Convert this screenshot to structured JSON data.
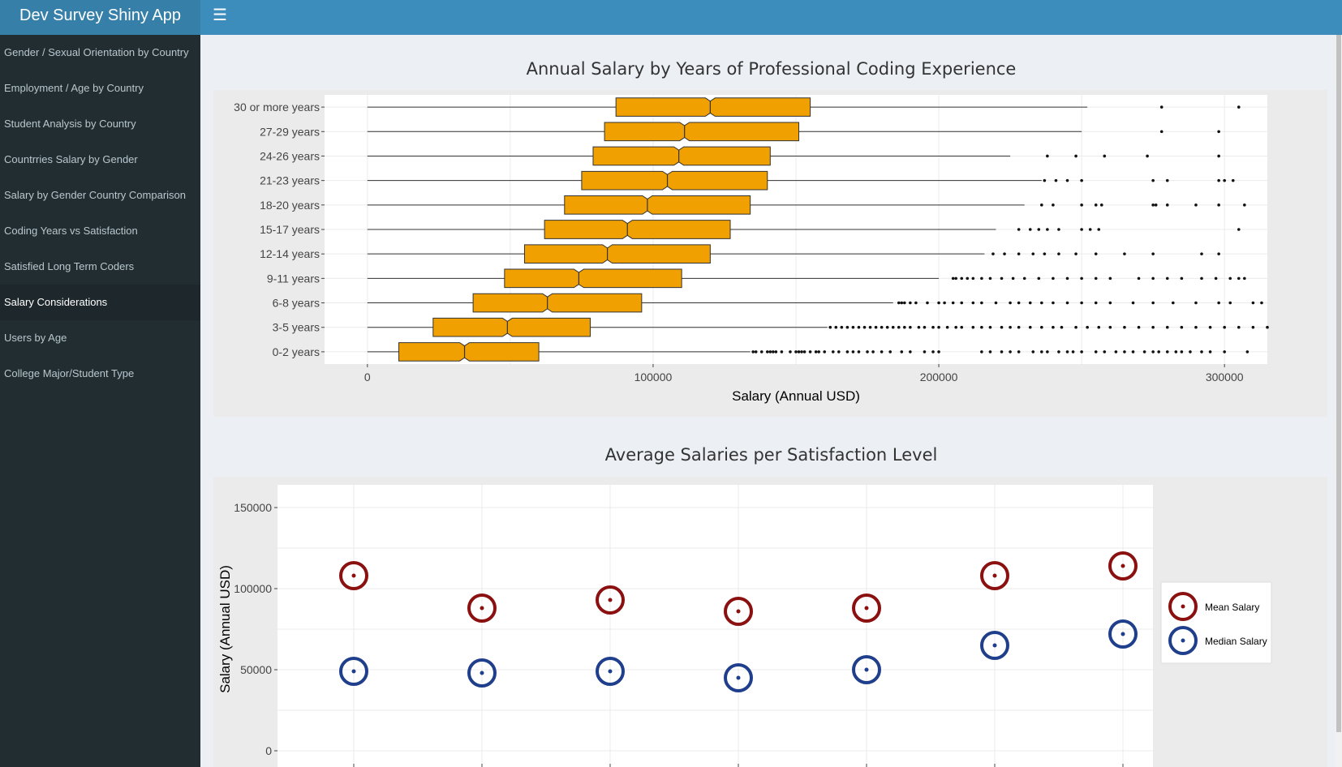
{
  "app": {
    "title": "Dev Survey Shiny App"
  },
  "sidebar": {
    "items": [
      {
        "label": "Gender / Sexual Orientation by Country",
        "active": false
      },
      {
        "label": "Employment / Age by Country",
        "active": false
      },
      {
        "label": "Student Analysis by Country",
        "active": false
      },
      {
        "label": "Countrries Salary by Gender",
        "active": false
      },
      {
        "label": "Salary by Gender Country Comparison",
        "active": false
      },
      {
        "label": "Coding Years vs Satisfaction",
        "active": false
      },
      {
        "label": "Satisfied Long Term Coders",
        "active": false
      },
      {
        "label": "Salary Considerations",
        "active": true
      },
      {
        "label": "Users by Age",
        "active": false
      },
      {
        "label": "College Major/Student Type",
        "active": false
      }
    ]
  },
  "colors": {
    "header": "#3c8dbc",
    "sidebar": "#222d32",
    "box_fill": "#f0a000",
    "mean": "#8b1010",
    "median": "#1f3f8c"
  },
  "chart_data": [
    {
      "type": "boxplot",
      "orientation": "horizontal",
      "title": "Annual Salary by Years of Professional Coding Experience",
      "xlabel": "Salary (Annual USD)",
      "ylabel": "",
      "xlim": [
        -15000,
        315000
      ],
      "xticks": [
        0,
        100000,
        200000,
        300000
      ],
      "categories": [
        "0-2 years",
        "3-5 years",
        "6-8 years",
        "9-11 years",
        "12-14 years",
        "15-17 years",
        "18-20 years",
        "21-23 years",
        "24-26 years",
        "27-29 years",
        "30 or more years"
      ],
      "boxes": [
        {
          "min": 0,
          "q1": 11000,
          "median": 34000,
          "q3": 60000,
          "max": 134000
        },
        {
          "min": 0,
          "q1": 23000,
          "median": 49000,
          "q3": 78000,
          "max": 161000
        },
        {
          "min": 0,
          "q1": 37000,
          "median": 63000,
          "q3": 96000,
          "max": 184000
        },
        {
          "min": 0,
          "q1": 48000,
          "median": 74000,
          "q3": 110000,
          "max": 200000
        },
        {
          "min": 0,
          "q1": 55000,
          "median": 84000,
          "q3": 120000,
          "max": 216000
        },
        {
          "min": 0,
          "q1": 62000,
          "median": 91000,
          "q3": 127000,
          "max": 220000
        },
        {
          "min": 0,
          "q1": 69000,
          "median": 98000,
          "q3": 134000,
          "max": 230000
        },
        {
          "min": 0,
          "q1": 75000,
          "median": 105000,
          "q3": 140000,
          "max": 236000
        },
        {
          "min": 0,
          "q1": 79000,
          "median": 109000,
          "q3": 141000,
          "max": 225000
        },
        {
          "min": 0,
          "q1": 83000,
          "median": 111000,
          "q3": 151000,
          "max": 250000
        },
        {
          "min": 0,
          "q1": 87000,
          "median": 120000,
          "q3": 155000,
          "max": 252000
        }
      ],
      "outliers": [
        [
          135000,
          136000,
          138000,
          140000,
          141000,
          142000,
          143000,
          145000,
          148000,
          150000,
          151000,
          152000,
          153000,
          155000,
          157000,
          158000,
          160000,
          163000,
          165000,
          168000,
          170000,
          172000,
          175000,
          177000,
          180000,
          183000,
          187000,
          190000,
          195000,
          198000,
          200000,
          215000,
          218000,
          222000,
          225000,
          228000,
          233000,
          236000,
          238000,
          242000,
          245000,
          247000,
          250000,
          255000,
          258000,
          262000,
          265000,
          268000,
          272000,
          275000,
          277000,
          280000,
          283000,
          285000,
          288000,
          292000,
          295000,
          300000,
          308000
        ],
        [
          162000,
          164000,
          166000,
          168000,
          170000,
          172000,
          174000,
          176000,
          178000,
          180000,
          182000,
          184000,
          186000,
          188000,
          190000,
          193000,
          195000,
          198000,
          200000,
          203000,
          206000,
          208000,
          212000,
          215000,
          218000,
          222000,
          225000,
          228000,
          232000,
          236000,
          240000,
          243000,
          248000,
          252000,
          256000,
          260000,
          265000,
          270000,
          275000,
          280000,
          285000,
          290000,
          295000,
          300000,
          305000,
          310000,
          315000
        ],
        [
          186000,
          187000,
          188000,
          190000,
          192000,
          196000,
          200000,
          202000,
          205000,
          208000,
          212000,
          215000,
          220000,
          225000,
          228000,
          232000,
          236000,
          240000,
          245000,
          250000,
          255000,
          260000,
          268000,
          275000,
          282000,
          290000,
          298000,
          302000,
          310000,
          313000
        ],
        [
          205000,
          206000,
          208000,
          210000,
          212000,
          215000,
          218000,
          222000,
          226000,
          230000,
          235000,
          240000,
          245000,
          250000,
          255000,
          260000,
          270000,
          275000,
          280000,
          285000,
          292000,
          297000,
          302000,
          305000,
          307000
        ],
        [
          219000,
          223000,
          228000,
          233000,
          237000,
          242000,
          248000,
          255000,
          265000,
          275000,
          292000,
          298000
        ],
        [
          228000,
          232000,
          235000,
          238000,
          242000,
          250000,
          253000,
          256000,
          305000
        ],
        [
          236000,
          240000,
          250000,
          255000,
          257000,
          275000,
          276000,
          280000,
          290000,
          298000,
          307000
        ],
        [
          237000,
          241000,
          245000,
          250000,
          275000,
          280000,
          298000,
          300000,
          303000
        ],
        [
          238000,
          248000,
          258000,
          273000,
          298000
        ],
        [
          278000,
          298000
        ],
        [
          278000,
          305000
        ]
      ]
    },
    {
      "type": "scatter",
      "title": "Average Salaries per Satisfaction Level",
      "xlabel": "",
      "ylabel": "Salary (Annual USD)",
      "ylim": [
        0,
        150000
      ],
      "yticks": [
        0,
        50000,
        100000,
        150000
      ],
      "x": [
        1,
        2,
        3,
        4,
        5,
        6,
        7
      ],
      "legend_position": "right",
      "series": [
        {
          "name": "Mean Salary",
          "color": "#8b1010",
          "values": [
            108000,
            88000,
            93000,
            86000,
            88000,
            108000,
            114000
          ]
        },
        {
          "name": "Median Salary",
          "color": "#1f3f8c",
          "values": [
            49000,
            48000,
            49000,
            45000,
            50000,
            65000,
            72000
          ]
        }
      ]
    }
  ]
}
